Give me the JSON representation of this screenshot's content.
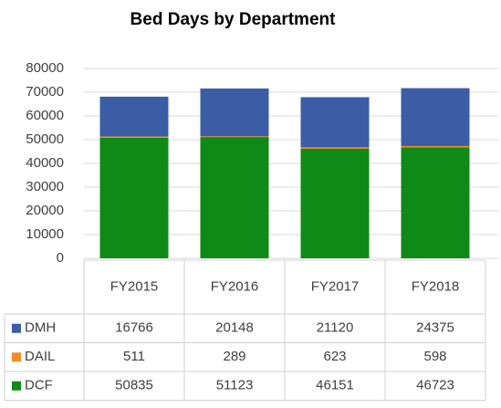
{
  "chart_data": {
    "type": "stacked_bar",
    "title": "Bed Days by Department",
    "categories": [
      "FY2015",
      "FY2016",
      "FY2017",
      "FY2018"
    ],
    "series": [
      {
        "name": "DMH",
        "color": "#3a5da6",
        "values": [
          16766,
          20148,
          21120,
          24375
        ]
      },
      {
        "name": "DAIL",
        "color": "#f28c28",
        "values": [
          511,
          289,
          623,
          598
        ]
      },
      {
        "name": "DCF",
        "color": "#0f8a17",
        "values": [
          50835,
          51123,
          46151,
          46723
        ]
      }
    ],
    "ylim": [
      0,
      80000
    ],
    "yticks": [
      0,
      10000,
      20000,
      30000,
      40000,
      50000,
      60000,
      70000,
      80000
    ],
    "grid": true,
    "data_table": true
  }
}
